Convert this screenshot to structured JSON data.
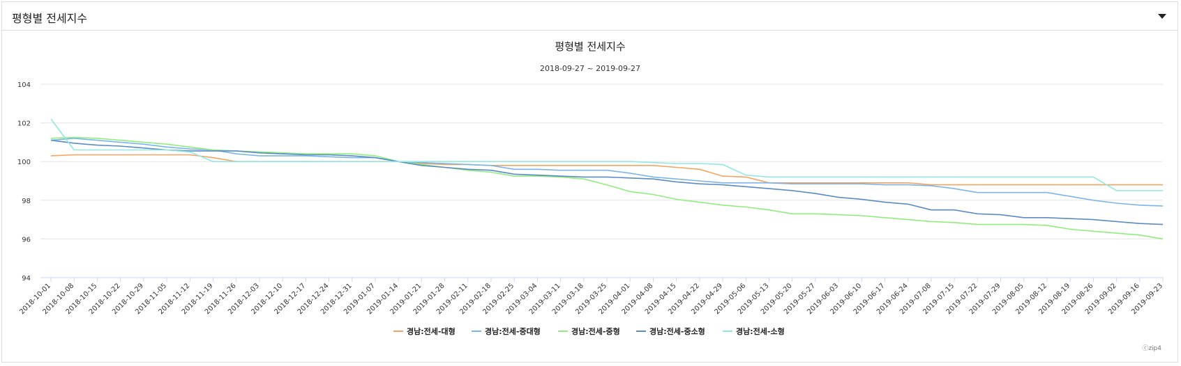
{
  "panel": {
    "title": "평형별 전세지수"
  },
  "chart_data": {
    "type": "line",
    "title": "평형별 전세지수",
    "subtitle": "2018-09-27 ~ 2019-09-27",
    "ylim": [
      94,
      104
    ],
    "yticks": [
      94,
      96,
      98,
      100,
      102,
      104
    ],
    "grid": "horizontal",
    "legend_position": "bottom",
    "credit": "ⓒzip4",
    "categories": [
      "2018-10-01",
      "2018-10-08",
      "2018-10-15",
      "2018-10-22",
      "2018-10-29",
      "2018-11-05",
      "2018-11-12",
      "2018-11-19",
      "2018-11-26",
      "2018-12-03",
      "2018-12-10",
      "2018-12-17",
      "2018-12-24",
      "2018-12-31",
      "2019-01-07",
      "2019-01-14",
      "2019-01-21",
      "2019-01-28",
      "2019-02-11",
      "2019-02-18",
      "2019-02-25",
      "2019-03-04",
      "2019-03-11",
      "2019-03-18",
      "2019-03-25",
      "2019-04-01",
      "2019-04-08",
      "2019-04-15",
      "2019-04-22",
      "2019-04-29",
      "2019-05-06",
      "2019-05-13",
      "2019-05-20",
      "2019-05-27",
      "2019-06-03",
      "2019-06-10",
      "2019-06-17",
      "2019-06-24",
      "2019-07-08",
      "2019-07-15",
      "2019-07-22",
      "2019-07-29",
      "2019-08-05",
      "2019-08-12",
      "2019-08-19",
      "2019-08-26",
      "2019-09-02",
      "2019-09-16",
      "2019-09-23"
    ],
    "series": [
      {
        "name": "경남:전세-대형",
        "color": "#f4a460",
        "values": [
          100.3,
          100.35,
          100.35,
          100.35,
          100.35,
          100.35,
          100.35,
          100.2,
          100.0,
          100.0,
          100.0,
          100.0,
          100.0,
          100.0,
          100.0,
          100.0,
          99.9,
          99.85,
          99.85,
          99.8,
          99.8,
          99.8,
          99.8,
          99.8,
          99.8,
          99.8,
          99.8,
          99.7,
          99.6,
          99.25,
          99.2,
          98.9,
          98.9,
          98.9,
          98.9,
          98.9,
          98.9,
          98.9,
          98.8,
          98.8,
          98.8,
          98.8,
          98.8,
          98.8,
          98.8,
          98.8,
          98.8,
          98.8,
          98.8
        ]
      },
      {
        "name": "경남:전세-중대형",
        "color": "#7cb5ec",
        "values": [
          101.1,
          101.2,
          101.1,
          101.0,
          100.9,
          100.75,
          100.65,
          100.6,
          100.4,
          100.3,
          100.3,
          100.3,
          100.25,
          100.2,
          100.2,
          100.0,
          99.95,
          99.9,
          99.85,
          99.8,
          99.6,
          99.6,
          99.55,
          99.55,
          99.55,
          99.4,
          99.2,
          99.1,
          99.0,
          98.9,
          98.9,
          98.9,
          98.85,
          98.85,
          98.85,
          98.85,
          98.8,
          98.8,
          98.75,
          98.6,
          98.4,
          98.4,
          98.4,
          98.4,
          98.2,
          98.0,
          97.85,
          97.75,
          97.7
        ]
      },
      {
        "name": "경남:전세-중형",
        "color": "#90ed7d",
        "values": [
          101.2,
          101.25,
          101.2,
          101.1,
          101.0,
          100.9,
          100.75,
          100.6,
          100.55,
          100.5,
          100.45,
          100.4,
          100.4,
          100.4,
          100.3,
          100.0,
          99.85,
          99.7,
          99.55,
          99.45,
          99.25,
          99.25,
          99.2,
          99.1,
          98.8,
          98.45,
          98.3,
          98.05,
          97.9,
          97.75,
          97.65,
          97.5,
          97.3,
          97.3,
          97.25,
          97.2,
          97.1,
          97.0,
          96.9,
          96.85,
          96.75,
          96.75,
          96.75,
          96.7,
          96.5,
          96.4,
          96.3,
          96.2,
          96.0
        ]
      },
      {
        "name": "경남:전세-중소형",
        "color": "#5b8ac6",
        "values": [
          101.1,
          100.95,
          100.85,
          100.8,
          100.7,
          100.6,
          100.55,
          100.55,
          100.55,
          100.45,
          100.4,
          100.35,
          100.35,
          100.3,
          100.2,
          100.0,
          99.8,
          99.7,
          99.6,
          99.55,
          99.35,
          99.3,
          99.25,
          99.2,
          99.2,
          99.15,
          99.1,
          98.95,
          98.85,
          98.8,
          98.7,
          98.6,
          98.5,
          98.35,
          98.15,
          98.05,
          97.9,
          97.8,
          97.5,
          97.5,
          97.3,
          97.25,
          97.1,
          97.1,
          97.05,
          97.0,
          96.9,
          96.8,
          96.75
        ]
      },
      {
        "name": "경남:전세-소형",
        "color": "#91e8e1",
        "values": [
          102.2,
          100.6,
          100.6,
          100.6,
          100.6,
          100.6,
          100.5,
          100.0,
          100.0,
          100.0,
          100.0,
          100.0,
          100.0,
          100.0,
          100.0,
          100.0,
          100.0,
          100.0,
          100.0,
          100.0,
          100.0,
          100.0,
          100.0,
          100.0,
          100.0,
          100.0,
          99.95,
          99.9,
          99.9,
          99.85,
          99.3,
          99.2,
          99.2,
          99.2,
          99.2,
          99.2,
          99.2,
          99.2,
          99.2,
          99.2,
          99.2,
          99.2,
          99.2,
          99.2,
          99.2,
          99.2,
          98.5,
          98.5,
          98.5
        ]
      }
    ]
  }
}
